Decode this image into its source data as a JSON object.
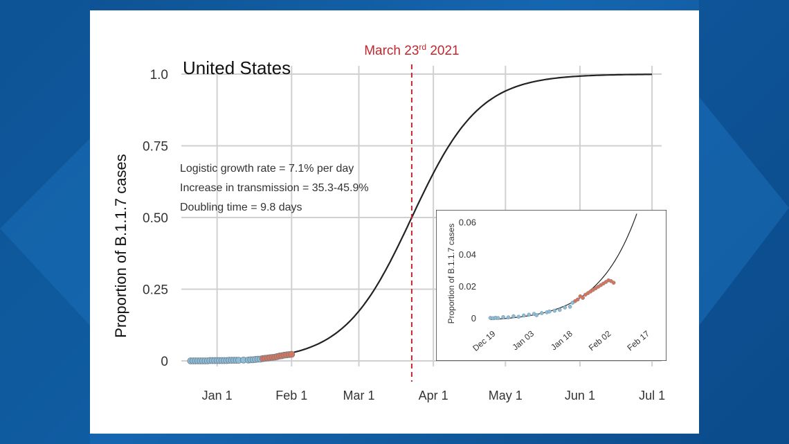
{
  "chart_data": [
    {
      "type": "line",
      "title": "United States",
      "ylabel": "Proportion of B.1.1.7 cases",
      "xlabel": "",
      "x_ticks": [
        "Jan 1",
        "Feb 1",
        "Mar 1",
        "Apr 1",
        "May 1",
        "Jun 1",
        "Jul 1"
      ],
      "y_ticks": [
        "0",
        "0.25",
        "0.50",
        "0.75",
        "1.0"
      ],
      "xlim": [
        "2020-12-20",
        "2021-07-05"
      ],
      "ylim": [
        0,
        1
      ],
      "grid": true,
      "annotations": [
        "Logistic growth rate = 7.1% per day",
        "Increase in transmission = 35.3-45.9%",
        "Doubling time = 9.8 days"
      ],
      "marker": {
        "label": "March 23rd 2021",
        "label_base": "March 23",
        "label_sup": "rd",
        "label_year": " 2021",
        "date": "2021-03-23",
        "color": "#c0272d"
      },
      "logistic_fit": {
        "midpoint_date": "2021-03-23",
        "growth_rate_per_day": 0.071,
        "range": [
          "2021-02-02",
          "2021-07-01"
        ]
      },
      "series": [
        {
          "color": "#8dbcd8",
          "points": [
            [
              "2020-12-21",
              0.0
            ],
            [
              "2020-12-22",
              0.0
            ],
            [
              "2020-12-23",
              0.0
            ],
            [
              "2020-12-24",
              0.0
            ],
            [
              "2020-12-25",
              0.0
            ],
            [
              "2020-12-26",
              0.0
            ],
            [
              "2020-12-27",
              0.0
            ],
            [
              "2020-12-28",
              0.0
            ],
            [
              "2020-12-29",
              0.001
            ],
            [
              "2020-12-30",
              0.001
            ],
            [
              "2020-12-31",
              0.001
            ],
            [
              "2021-01-01",
              0.001
            ],
            [
              "2021-01-02",
              0.001
            ],
            [
              "2021-01-03",
              0.001
            ],
            [
              "2021-01-04",
              0.001
            ],
            [
              "2021-01-05",
              0.001
            ],
            [
              "2021-01-06",
              0.002
            ],
            [
              "2021-01-07",
              0.002
            ],
            [
              "2021-01-08",
              0.002
            ],
            [
              "2021-01-09",
              0.002
            ],
            [
              "2021-01-10",
              0.002
            ],
            [
              "2021-01-12",
              0.003
            ],
            [
              "2021-01-14",
              0.003
            ],
            [
              "2021-01-15",
              0.004
            ],
            [
              "2021-01-16",
              0.004
            ],
            [
              "2021-01-17",
              0.005
            ],
            [
              "2021-01-18",
              0.006
            ],
            [
              "2021-01-19",
              0.006
            ]
          ]
        },
        {
          "color": "#d9745a",
          "points": [
            [
              "2021-01-20",
              0.008
            ],
            [
              "2021-01-21",
              0.009
            ],
            [
              "2021-01-22",
              0.01
            ],
            [
              "2021-01-23",
              0.011
            ],
            [
              "2021-01-24",
              0.012
            ],
            [
              "2021-01-25",
              0.013
            ],
            [
              "2021-01-26",
              0.015
            ],
            [
              "2021-01-27",
              0.017
            ],
            [
              "2021-01-28",
              0.018
            ],
            [
              "2021-01-29",
              0.02
            ],
            [
              "2021-01-30",
              0.021
            ],
            [
              "2021-01-31",
              0.022
            ],
            [
              "2021-02-01",
              0.023
            ]
          ]
        }
      ]
    },
    {
      "type": "line",
      "title": "",
      "ylabel": "Proportion of B.1.1.7 cases",
      "x_ticks": [
        "Dec 19",
        "Jan 03",
        "Jan 18",
        "Feb 02",
        "Feb 17"
      ],
      "y_ticks": [
        "0",
        "0.02",
        "0.04",
        "0.06"
      ],
      "xlim": [
        "2020-12-14",
        "2021-02-21"
      ],
      "ylim": [
        -0.003,
        0.062
      ],
      "grid": false,
      "fit_range": [
        "2020-12-19",
        "2021-02-14"
      ],
      "series": [
        {
          "color": "#8dbcd8",
          "points": [
            [
              "2020-12-19",
              0.0005
            ],
            [
              "2020-12-20",
              0.0003
            ],
            [
              "2020-12-21",
              0.0006
            ],
            [
              "2020-12-22",
              0.0004
            ],
            [
              "2020-12-24",
              0.001
            ],
            [
              "2020-12-26",
              0.0008
            ],
            [
              "2020-12-28",
              0.0015
            ],
            [
              "2020-12-30",
              0.0012
            ],
            [
              "2021-01-01",
              0.002
            ],
            [
              "2021-01-03",
              0.0025
            ],
            [
              "2021-01-05",
              0.003
            ],
            [
              "2021-01-06",
              0.0022
            ],
            [
              "2021-01-08",
              0.0035
            ],
            [
              "2021-01-10",
              0.004
            ],
            [
              "2021-01-11",
              0.0045
            ],
            [
              "2021-01-13",
              0.005
            ],
            [
              "2021-01-15",
              0.0055
            ],
            [
              "2021-01-17",
              0.007
            ],
            [
              "2021-01-19",
              0.0075
            ],
            [
              "2021-01-20",
              0.01
            ]
          ]
        },
        {
          "color": "#d9745a",
          "points": [
            [
              "2021-01-21",
              0.011
            ],
            [
              "2021-01-22",
              0.012
            ],
            [
              "2021-01-23",
              0.014
            ],
            [
              "2021-01-24",
              0.013
            ],
            [
              "2021-01-25",
              0.015
            ],
            [
              "2021-01-26",
              0.016
            ],
            [
              "2021-01-27",
              0.017
            ],
            [
              "2021-01-28",
              0.018
            ],
            [
              "2021-01-29",
              0.019
            ],
            [
              "2021-01-30",
              0.02
            ],
            [
              "2021-01-31",
              0.021
            ],
            [
              "2021-02-01",
              0.022
            ],
            [
              "2021-02-02",
              0.023
            ],
            [
              "2021-02-03",
              0.024
            ],
            [
              "2021-02-04",
              0.0235
            ],
            [
              "2021-02-05",
              0.0225
            ]
          ]
        }
      ]
    }
  ]
}
